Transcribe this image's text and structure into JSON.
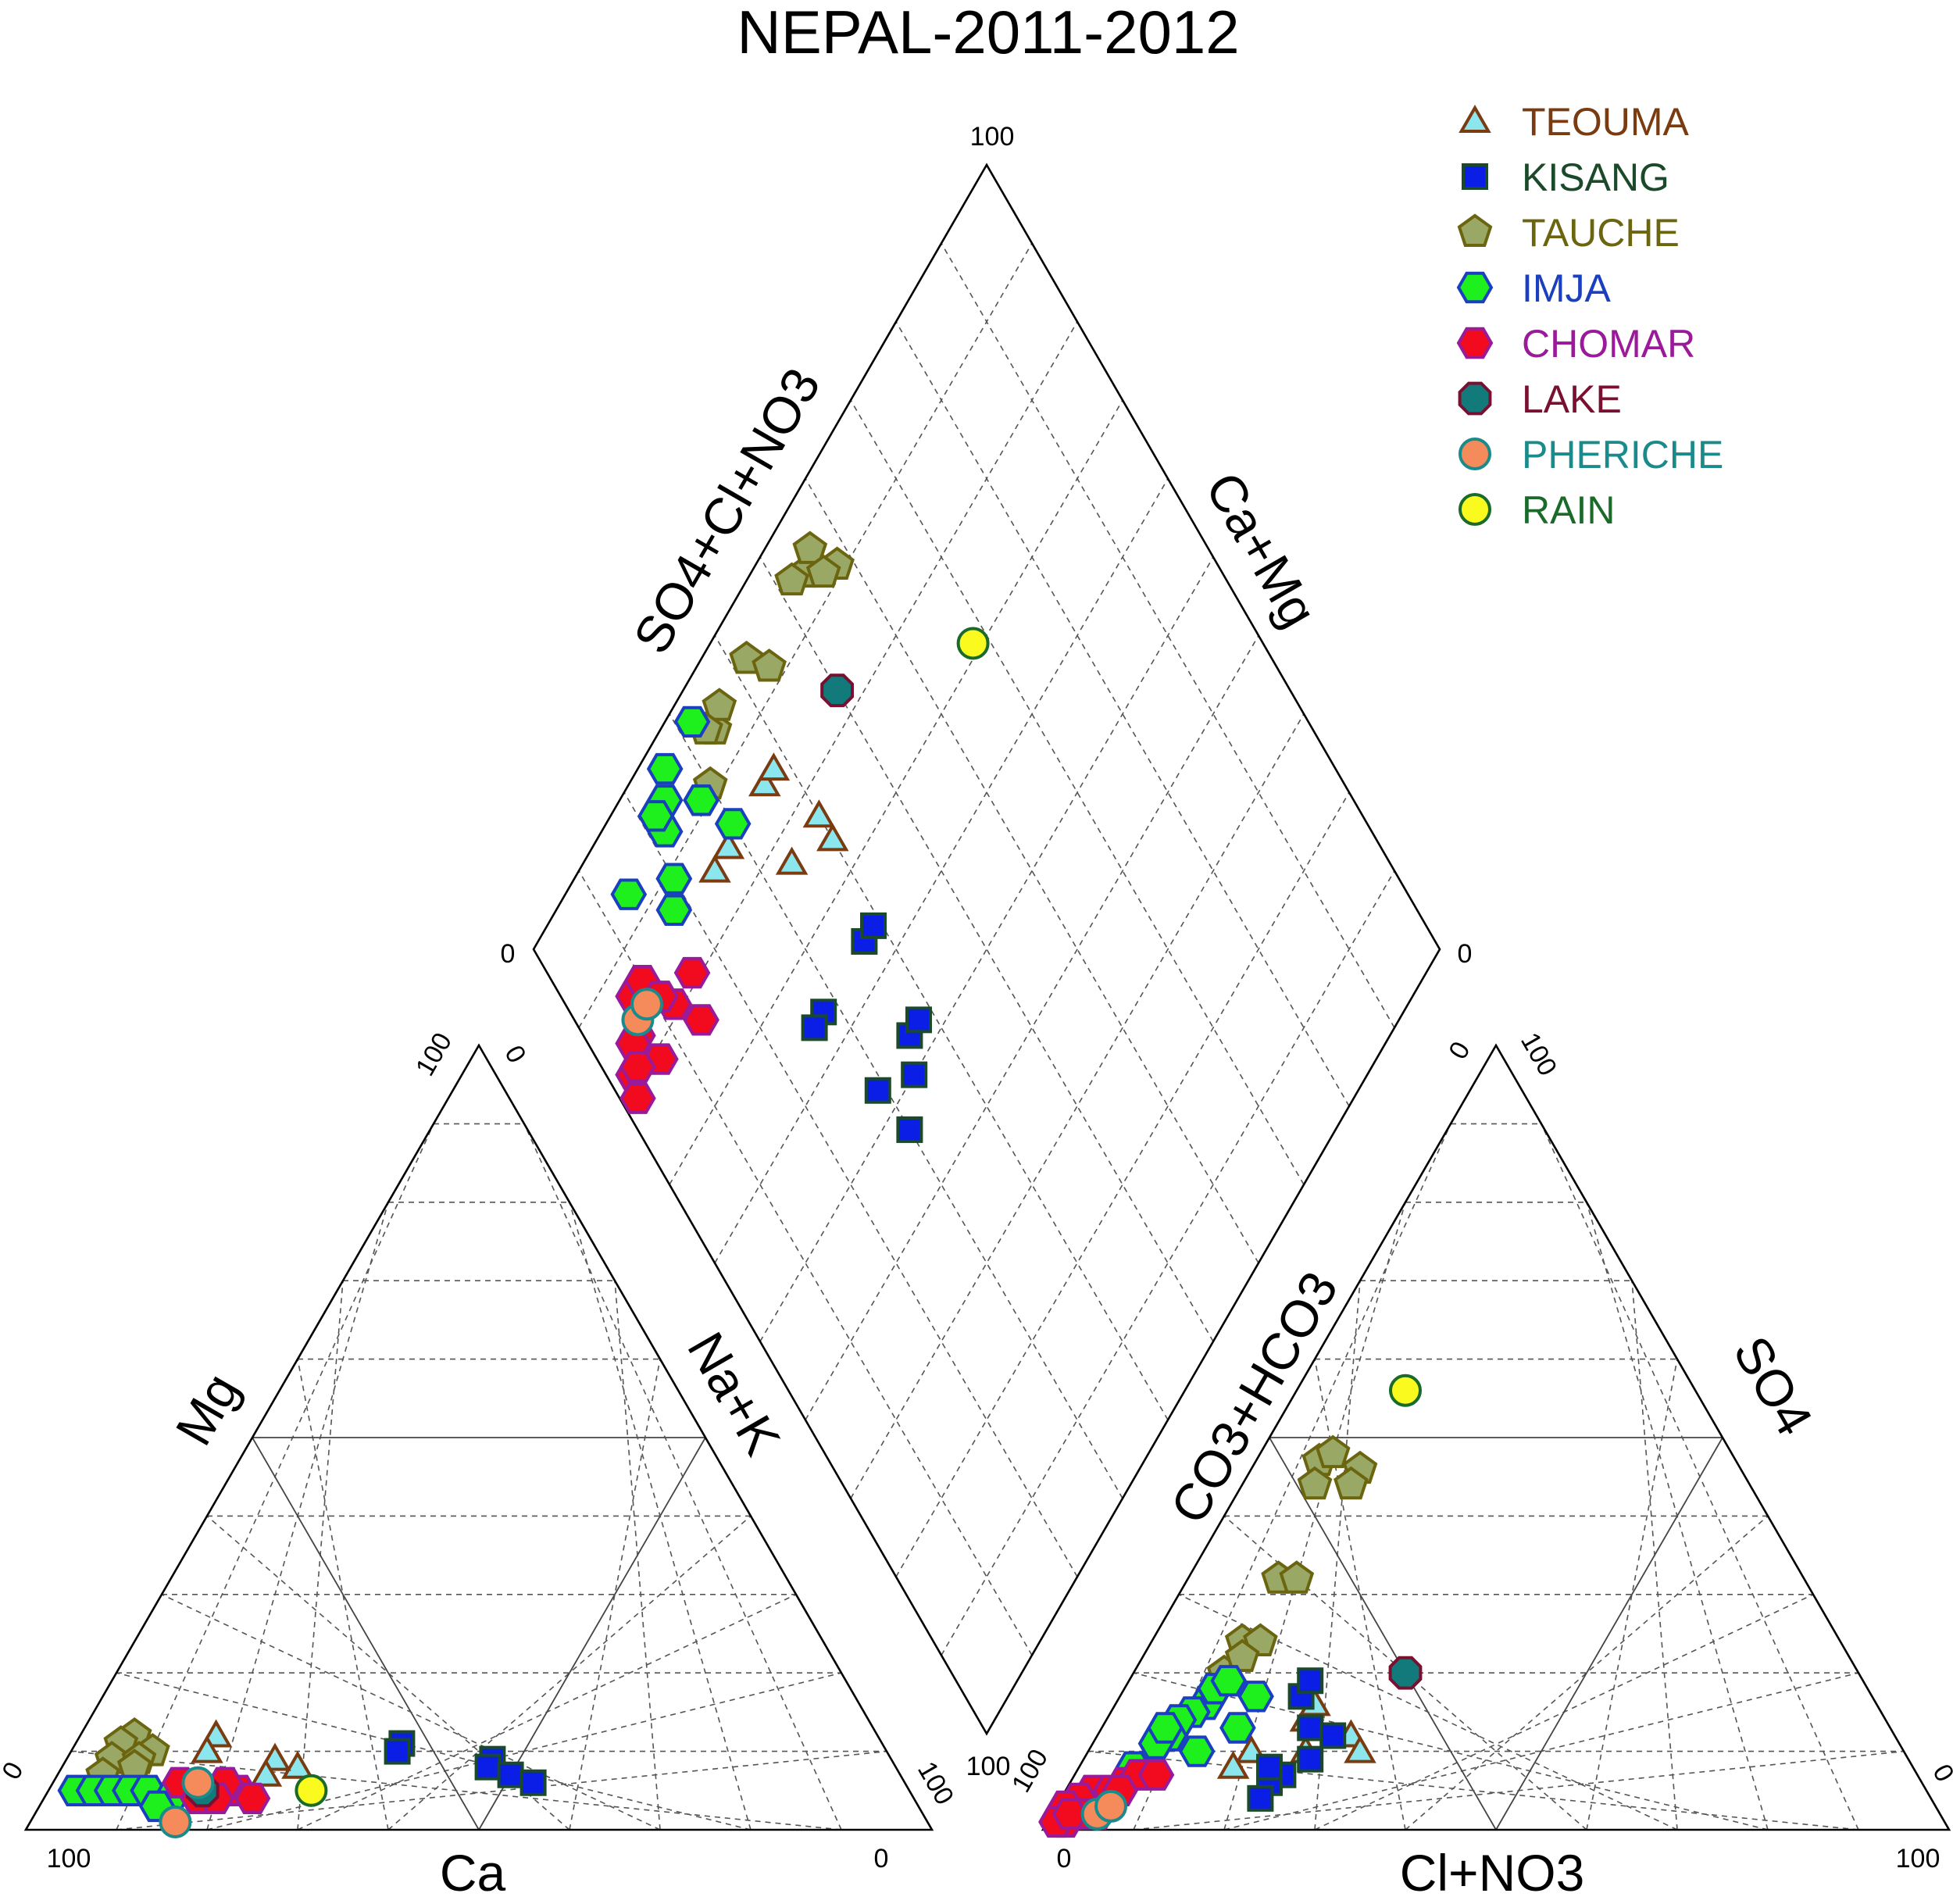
{
  "chart_data": {
    "type": "scatter",
    "subtype": "piper-trilinear",
    "title": "NEPAL-2011-2012",
    "grid": true,
    "legend_position": "top-right",
    "cation_triangle": {
      "axis_labels": {
        "left": "Mg",
        "right": "Na+K",
        "bottom": "Ca"
      },
      "ticks": {
        "bottom_left": "100",
        "bottom_right": "0",
        "left_bottom": "0",
        "left_top": "100",
        "right_top": "0",
        "right_bottom": "100"
      }
    },
    "anion_triangle": {
      "axis_labels": {
        "left": "CO3+HCO3",
        "right": "SO4",
        "bottom": "Cl+NO3"
      },
      "ticks": {
        "bottom_left": "0",
        "bottom_right": "100",
        "left_bottom": "100",
        "left_top": "0",
        "right_top": "100",
        "right_bottom": "0"
      }
    },
    "diamond": {
      "axis_labels": {
        "upper_left": "SO4+Cl+NO3",
        "upper_right": "Ca+Mg"
      },
      "ticks": {
        "top": "100",
        "left": "0",
        "right": "0",
        "bottom": "100"
      }
    },
    "series": [
      {
        "name": "TEOUMA",
        "marker": "triangle",
        "fill": "#8ce6ee",
        "stroke": "#7a3b10",
        "text_color": "#7a3b10",
        "cation": [
          [
            73,
            12,
            15
          ],
          [
            75,
            10,
            15
          ],
          [
            66,
            8,
            26
          ],
          [
            68,
            9,
            23
          ],
          [
            70,
            7,
            23
          ]
        ],
        "anion": [
          [
            64,
            14,
            22
          ],
          [
            62,
            16,
            22
          ],
          [
            60,
            12,
            28
          ],
          [
            60,
            10,
            30
          ],
          [
            66,
            10,
            24
          ],
          [
            72,
            10,
            18
          ],
          [
            75,
            8,
            17
          ]
        ]
      },
      {
        "name": "KISANG",
        "marker": "square",
        "fill": "#0a1ee6",
        "stroke": "#1a4a2a",
        "text_color": "#1a4a2a",
        "cation": [
          [
            53,
            11,
            36
          ],
          [
            54,
            10,
            36
          ],
          [
            44,
            9,
            47
          ],
          [
            45,
            8,
            47
          ],
          [
            43,
            7,
            50
          ],
          [
            41,
            6,
            53
          ]
        ],
        "anion": [
          [
            63,
            17,
            20
          ],
          [
            61,
            19,
            20
          ],
          [
            64,
            13,
            23
          ],
          [
            62,
            12,
            26
          ],
          [
            66,
            9,
            25
          ],
          [
            70,
            7,
            23
          ],
          [
            72,
            6,
            22
          ],
          [
            74,
            4,
            22
          ],
          [
            71,
            8,
            21
          ]
        ]
      },
      {
        "name": "TAUCHE",
        "marker": "pentagon",
        "fill": "#9aa865",
        "stroke": "#6b6510",
        "text_color": "#6b6510",
        "cation": [
          [
            82,
            12,
            6
          ],
          [
            84,
            11,
            5
          ],
          [
            81,
            10,
            9
          ],
          [
            86,
            9,
            5
          ],
          [
            83,
            9,
            8
          ],
          [
            88,
            7,
            5
          ],
          [
            84,
            8,
            8
          ]
        ],
        "anion": [
          [
            46,
            47,
            7
          ],
          [
            44,
            48,
            8
          ],
          [
            42,
            46,
            12
          ],
          [
            48,
            44,
            8
          ],
          [
            44,
            44,
            12
          ],
          [
            58,
            32,
            10
          ],
          [
            56,
            32,
            12
          ],
          [
            66,
            24,
            10
          ],
          [
            64,
            24,
            12
          ],
          [
            70,
            20,
            10
          ],
          [
            67,
            22,
            11
          ]
        ]
      },
      {
        "name": "IMJA",
        "marker": "hexagon",
        "fill": "#1ef01e",
        "stroke": "#1a3fbf",
        "text_color": "#1a3fbf",
        "cation": [
          [
            92,
            5,
            3
          ],
          [
            90,
            5,
            5
          ],
          [
            88,
            5,
            7
          ],
          [
            86,
            5,
            9
          ],
          [
            84,
            5,
            11
          ],
          [
            82,
            4,
            14
          ],
          [
            84,
            3,
            13
          ]
        ],
        "anion": [
          [
            74,
            16,
            10
          ],
          [
            76,
            15,
            9
          ],
          [
            78,
            14,
            8
          ],
          [
            72,
            18,
            10
          ],
          [
            80,
            12,
            8
          ],
          [
            70,
            19,
            11
          ],
          [
            82,
            11,
            7
          ],
          [
            68,
            17,
            15
          ],
          [
            78,
            10,
            12
          ],
          [
            86,
            8,
            6
          ],
          [
            72,
            13,
            15
          ],
          [
            80,
            13,
            7
          ]
        ]
      },
      {
        "name": "CHOMAR",
        "marker": "hexagon",
        "fill": "#f20a1e",
        "stroke": "#9a1a9a",
        "text_color": "#9a1a9a",
        "cation": [
          [
            80,
            6,
            14
          ],
          [
            78,
            5,
            17
          ],
          [
            76,
            5,
            19
          ],
          [
            74,
            5,
            21
          ],
          [
            75,
            6,
            19
          ],
          [
            79,
            4,
            17
          ],
          [
            77,
            4,
            19
          ],
          [
            73,
            4,
            23
          ]
        ],
        "anion": [
          [
            92,
            5,
            3
          ],
          [
            94,
            4,
            2
          ],
          [
            96,
            3,
            1
          ],
          [
            93,
            2,
            5
          ],
          [
            97,
            1,
            2
          ],
          [
            95,
            2,
            3
          ],
          [
            88,
            6,
            6
          ],
          [
            86,
            7,
            7
          ],
          [
            90,
            5,
            5
          ],
          [
            89,
            5,
            6
          ],
          [
            84,
            7,
            9
          ],
          [
            98,
            1,
            1
          ],
          [
            96,
            2,
            2
          ]
        ]
      },
      {
        "name": "LAKE",
        "marker": "octagon",
        "fill": "#127a7a",
        "stroke": "#7a1030",
        "text_color": "#7a1030",
        "cation": [
          [
            78,
            5,
            17
          ]
        ],
        "anion": [
          [
            50,
            20,
            30
          ]
        ]
      },
      {
        "name": "PHERICHE",
        "marker": "circle",
        "fill": "#f58a5a",
        "stroke": "#1a8a8a",
        "text_color": "#1a8a8a",
        "cation": [
          [
            83,
            1,
            16
          ],
          [
            78,
            6,
            16
          ]
        ],
        "anion": [
          [
            93,
            2,
            5
          ],
          [
            91,
            3,
            6
          ]
        ]
      },
      {
        "name": "RAIN",
        "marker": "circle",
        "fill": "#fafa1e",
        "stroke": "#1a6a2a",
        "text_color": "#1a6a2a",
        "cation": [
          [
            66,
            5,
            29
          ]
        ],
        "anion": [
          [
            32,
            56,
            12
          ]
        ]
      }
    ]
  }
}
